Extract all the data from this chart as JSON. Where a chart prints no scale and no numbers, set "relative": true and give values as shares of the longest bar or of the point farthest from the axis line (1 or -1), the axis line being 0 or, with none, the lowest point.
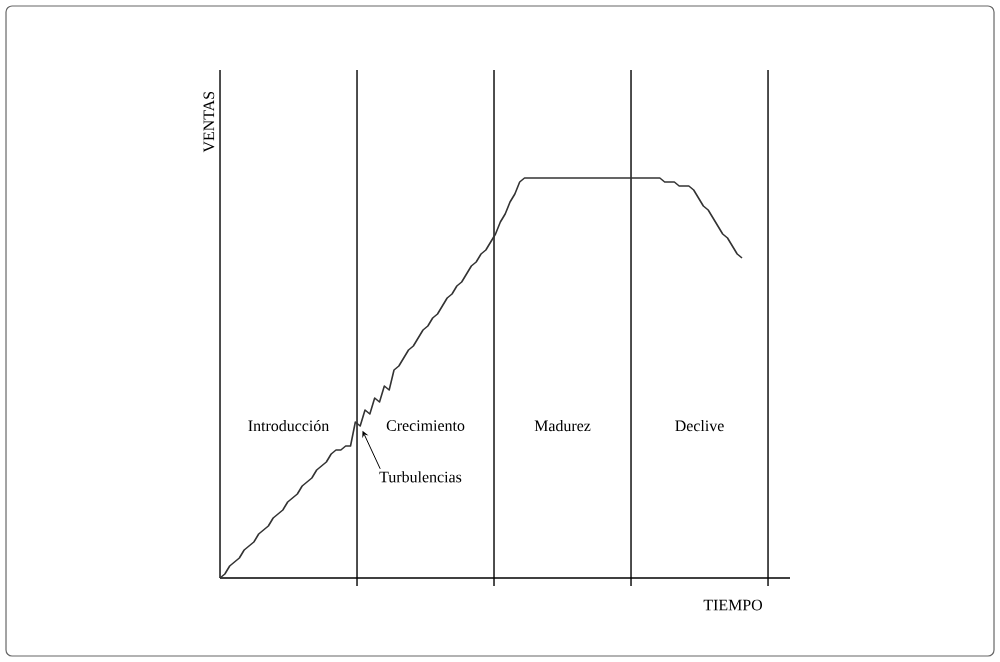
{
  "chart_data": {
    "type": "line",
    "relative": true,
    "xlabel": "TIEMPO",
    "ylabel": "VENTAS",
    "categories": [
      null,
      null,
      null,
      null,
      null,
      null,
      null,
      null,
      null,
      null,
      null,
      null,
      null,
      null,
      null,
      null,
      null,
      null,
      null,
      null,
      null,
      null,
      null,
      null,
      null,
      null,
      null,
      null,
      null,
      null,
      null,
      null,
      null,
      null,
      null,
      null,
      null,
      null,
      null,
      null,
      null,
      null,
      null,
      null,
      null,
      null,
      null,
      null,
      null,
      null,
      null,
      null,
      null,
      null,
      null,
      null,
      null,
      null,
      null,
      null,
      null,
      null,
      null,
      null,
      null,
      null,
      null,
      null,
      null,
      null,
      null,
      null,
      null,
      null,
      null,
      null,
      null,
      null,
      null,
      null,
      null,
      null,
      null,
      null,
      null,
      null,
      null,
      null,
      null,
      null,
      null,
      null,
      null,
      null,
      null,
      null,
      null,
      null,
      null,
      null,
      null,
      null,
      null,
      null,
      null,
      null,
      null,
      null,
      null
    ],
    "values": [
      0,
      0.01,
      0.03,
      0.04,
      0.05,
      0.07,
      0.08,
      0.09,
      0.11,
      0.12,
      0.13,
      0.15,
      0.16,
      0.17,
      0.19,
      0.2,
      0.21,
      0.23,
      0.24,
      0.25,
      0.27,
      0.28,
      0.29,
      0.31,
      0.32,
      0.32,
      0.33,
      0.33,
      0.39,
      0.38,
      0.42,
      0.41,
      0.45,
      0.44,
      0.48,
      0.47,
      0.52,
      0.53,
      0.55,
      0.57,
      0.58,
      0.6,
      0.62,
      0.63,
      0.65,
      0.66,
      0.68,
      0.7,
      0.71,
      0.73,
      0.74,
      0.76,
      0.78,
      0.79,
      0.81,
      0.82,
      0.84,
      0.86,
      0.89,
      0.91,
      0.94,
      0.96,
      0.99,
      1,
      1,
      1,
      1,
      1,
      1,
      1,
      1,
      1,
      1,
      1,
      1,
      1,
      1,
      1,
      1,
      1,
      1,
      1,
      1,
      1,
      1,
      1,
      1,
      1,
      1,
      1,
      1,
      1,
      0.99,
      0.99,
      0.99,
      0.98,
      0.98,
      0.98,
      0.97,
      0.95,
      0.93,
      0.92,
      0.9,
      0.88,
      0.86,
      0.85,
      0.83,
      0.81,
      0.8
    ],
    "color": "#333333",
    "annotations": [
      "Introducción",
      "Crecimiento",
      "Madurez",
      "Declive",
      "Turbulencias"
    ]
  }
}
